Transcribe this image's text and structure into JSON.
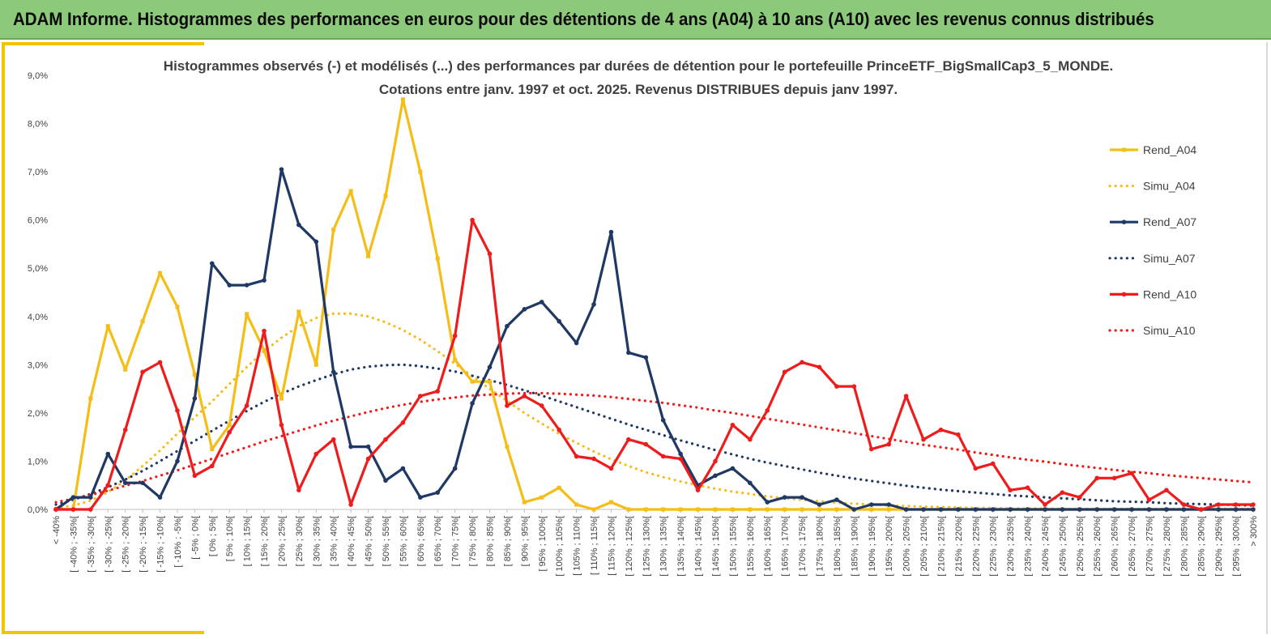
{
  "banner": {
    "title": "ADAM Informe. Histogrammes des performances en euros pour des détentions de 4 ans (A04) à 10 ans (A10) avec les revenus connus distribués"
  },
  "colors": {
    "banner_bg": "#8cc97a",
    "frame_accent": "#f5c400",
    "A04": "#f5bd17",
    "A07": "#1f3864",
    "A10": "#ee1c1c"
  },
  "chart_data": {
    "type": "line",
    "title_lines": [
      "Histogrammes observés (-) et modélisés (...) des performances par durées de détention pour  le portefeuille PrinceETF_BigSmallCap3_5_MONDE.",
      "Cotations  entre janv. 1997 et oct. 2025. Revenus DISTRIBUES depuis janv 1997."
    ],
    "ylim": [
      0,
      9
    ],
    "y_ticks": [
      "0,0%",
      "1,0%",
      "2,0%",
      "3,0%",
      "4,0%",
      "5,0%",
      "6,0%",
      "7,0%",
      "8,0%",
      "9,0%"
    ],
    "grid": false,
    "legend_position": "right",
    "categories": [
      "< -40%",
      "[ -40% ; -35%[",
      "[ -35% ; -30%[",
      "[ -30% ; -25%[",
      "[ -25% ; -20%[",
      "[ -20% ; -15%[",
      "[ -15% ; -10%[",
      "[ -10% ; -5%[",
      "[ -5% ; 0%[",
      "[ 0% ; 5%[",
      "[ 5% ; 10%[",
      "[ 10% ; 15%[",
      "[ 15% ; 20%[",
      "[ 20% ; 25%[",
      "[ 25% ; 30%[",
      "[ 30% ; 35%[",
      "[ 35% ; 40%[",
      "[ 40% ; 45%[",
      "[ 45% ; 50%[",
      "[ 50% ; 55%[",
      "[ 55% ; 60%[",
      "[ 60% ; 65%[",
      "[ 65% ; 70%[",
      "[ 70% ; 75%[",
      "[ 75% ; 80%[",
      "[ 80% ; 85%[",
      "[ 85% ; 90%[",
      "[ 90% ; 95%[",
      "[ 95% ; 100%[",
      "[ 100% ; 105%[",
      "[ 105% ; 110%[",
      "[ 110% ; 115%[",
      "[ 115% ; 120%[",
      "[ 120% ; 125%[",
      "[ 125% ; 130%[",
      "[ 130% ; 135%[",
      "[ 135% ; 140%[",
      "[ 140% ; 145%[",
      "[ 145% ; 150%[",
      "[ 150% ; 155%[",
      "[ 155% ; 160%[",
      "[ 160% ; 165%[",
      "[ 165% ; 170%[",
      "[ 170% ; 175%[",
      "[ 175% ; 180%[",
      "[ 180% ; 185%[",
      "[ 185% ; 190%[",
      "[ 190% ; 195%[",
      "[ 195% ; 200%[",
      "[ 200% ; 205%[",
      "[ 205% ; 210%[",
      "[ 210% ; 215%[",
      "[ 215% ; 220%[",
      "[ 220% ; 225%[",
      "[ 225% ; 230%[",
      "[ 230% ; 235%[",
      "[ 235% ; 240%[",
      "[ 240% ; 245%[",
      "[ 245% ; 250%[",
      "[ 250% ; 255%[",
      "[ 255% ; 260%[",
      "[ 260% ; 265%[",
      "[ 265% ; 270%[",
      "[ 270% ; 275%[",
      "[ 275% ; 280%[",
      "[ 280% ; 285%[",
      "[ 285% ; 290%[",
      "[ 290% ; 295%[",
      "[ 295% ; 300%[",
      "> 300%"
    ],
    "series": [
      {
        "name": "Rend_A04",
        "key": "A04",
        "style": "solid",
        "unit": "%",
        "values": [
          0,
          0,
          2.3,
          3.8,
          2.9,
          3.9,
          4.9,
          4.2,
          2.8,
          1.25,
          1.75,
          4.05,
          3.3,
          2.3,
          4.1,
          3.0,
          5.8,
          6.6,
          5.25,
          6.5,
          8.5,
          7.0,
          5.2,
          3.1,
          2.65,
          2.65,
          1.3,
          0.15,
          0.25,
          0.45,
          0.1,
          0,
          0.15,
          0,
          0,
          0,
          0,
          0,
          0,
          0,
          0,
          0,
          0,
          0,
          0,
          0,
          0,
          0,
          0,
          0,
          0,
          0,
          0,
          0,
          0,
          0,
          0,
          0,
          0,
          0,
          0,
          0,
          0,
          0,
          0,
          0,
          0,
          0,
          0,
          0
        ]
      },
      {
        "name": "Simu_A04",
        "key": "A04",
        "style": "dotted",
        "unit": "%",
        "values": [
          0.03,
          0.08,
          0.18,
          0.36,
          0.6,
          0.9,
          1.22,
          1.57,
          1.91,
          2.24,
          2.6,
          2.95,
          3.28,
          3.56,
          3.8,
          3.97,
          4.06,
          4.06,
          4.0,
          3.88,
          3.72,
          3.52,
          3.28,
          3.02,
          2.76,
          2.5,
          2.25,
          2.0,
          1.78,
          1.57,
          1.38,
          1.2,
          1.04,
          0.9,
          0.77,
          0.67,
          0.58,
          0.5,
          0.43,
          0.37,
          0.32,
          0.27,
          0.23,
          0.2,
          0.17,
          0.14,
          0.12,
          0.1,
          0.08,
          0.07,
          0.06,
          0.05,
          0.04,
          0.03,
          0.03,
          0.02,
          0.02,
          0.02,
          0.01,
          0.01,
          0.01,
          0.01,
          0.01,
          0.01,
          0.01,
          0.01,
          0.01,
          0.01,
          0.01,
          0.01
        ]
      },
      {
        "name": "Rend_A07",
        "key": "A07",
        "style": "solid",
        "unit": "%",
        "values": [
          0,
          0.25,
          0.25,
          1.15,
          0.55,
          0.55,
          0.25,
          1.0,
          2.3,
          5.1,
          4.65,
          4.65,
          4.75,
          7.05,
          5.9,
          5.55,
          2.85,
          1.3,
          1.3,
          0.6,
          0.85,
          0.25,
          0.35,
          0.85,
          2.2,
          2.95,
          3.8,
          4.15,
          4.3,
          3.9,
          3.45,
          4.25,
          5.75,
          3.25,
          3.15,
          1.85,
          1.15,
          0.5,
          0.7,
          0.85,
          0.55,
          0.15,
          0.25,
          0.25,
          0.1,
          0.2,
          0,
          0.1,
          0.1,
          0,
          0,
          0,
          0,
          0,
          0,
          0,
          0,
          0,
          0,
          0,
          0,
          0,
          0,
          0,
          0,
          0,
          0,
          0,
          0,
          0
        ]
      },
      {
        "name": "Simu_A07",
        "key": "A07",
        "style": "dotted",
        "unit": "%",
        "values": [
          0.1,
          0.2,
          0.32,
          0.46,
          0.62,
          0.8,
          1.0,
          1.21,
          1.42,
          1.63,
          1.84,
          2.04,
          2.23,
          2.4,
          2.55,
          2.68,
          2.8,
          2.9,
          2.96,
          2.99,
          3.0,
          2.97,
          2.92,
          2.86,
          2.77,
          2.68,
          2.58,
          2.47,
          2.36,
          2.24,
          2.12,
          2.0,
          1.88,
          1.76,
          1.65,
          1.54,
          1.43,
          1.33,
          1.23,
          1.14,
          1.05,
          0.97,
          0.9,
          0.83,
          0.76,
          0.7,
          0.64,
          0.59,
          0.54,
          0.49,
          0.45,
          0.41,
          0.38,
          0.35,
          0.32,
          0.29,
          0.27,
          0.25,
          0.23,
          0.21,
          0.19,
          0.17,
          0.16,
          0.15,
          0.13,
          0.12,
          0.11,
          0.1,
          0.09,
          0.08
        ]
      },
      {
        "name": "Rend_A10",
        "key": "A10",
        "style": "solid",
        "unit": "%",
        "values": [
          0,
          0,
          0,
          0.5,
          1.65,
          2.85,
          3.05,
          2.05,
          0.7,
          0.9,
          1.6,
          2.15,
          3.7,
          1.75,
          0.4,
          1.15,
          1.45,
          0.1,
          1.05,
          1.45,
          1.8,
          2.35,
          2.45,
          3.6,
          6.0,
          5.3,
          2.15,
          2.35,
          2.15,
          1.65,
          1.1,
          1.05,
          0.85,
          1.45,
          1.35,
          1.1,
          1.05,
          0.4,
          1.0,
          1.75,
          1.45,
          2.05,
          2.85,
          3.05,
          2.95,
          2.55,
          2.55,
          1.25,
          1.35,
          2.35,
          1.45,
          1.65,
          1.55,
          0.85,
          0.95,
          0.4,
          0.45,
          0.1,
          0.35,
          0.25,
          0.65,
          0.65,
          0.75,
          0.2,
          0.4,
          0.1,
          0,
          0.1,
          0.1,
          0.1
        ]
      },
      {
        "name": "Simu_A10",
        "key": "A10",
        "style": "dotted",
        "unit": "%",
        "values": [
          0.15,
          0.22,
          0.3,
          0.39,
          0.49,
          0.59,
          0.7,
          0.81,
          0.93,
          1.05,
          1.17,
          1.29,
          1.41,
          1.52,
          1.63,
          1.74,
          1.84,
          1.93,
          2.02,
          2.1,
          2.17,
          2.23,
          2.28,
          2.32,
          2.36,
          2.38,
          2.4,
          2.41,
          2.41,
          2.4,
          2.38,
          2.36,
          2.33,
          2.29,
          2.25,
          2.21,
          2.16,
          2.11,
          2.05,
          2.0,
          1.94,
          1.88,
          1.82,
          1.76,
          1.7,
          1.64,
          1.58,
          1.52,
          1.46,
          1.4,
          1.34,
          1.29,
          1.24,
          1.18,
          1.13,
          1.08,
          1.03,
          0.99,
          0.94,
          0.9,
          0.86,
          0.82,
          0.78,
          0.75,
          0.71,
          0.68,
          0.65,
          0.62,
          0.59,
          0.56
        ]
      }
    ]
  }
}
